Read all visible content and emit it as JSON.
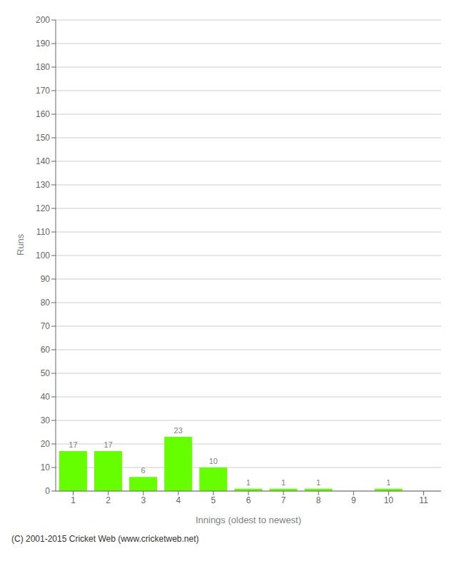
{
  "chart_data": {
    "type": "bar",
    "categories": [
      "1",
      "2",
      "3",
      "4",
      "5",
      "6",
      "7",
      "8",
      "9",
      "10",
      "11"
    ],
    "values": [
      17,
      17,
      6,
      23,
      10,
      1,
      1,
      1,
      0,
      1,
      0
    ],
    "color": "#66ff00",
    "xlabel": "Innings (oldest to newest)",
    "ylabel": "Runs",
    "ylim": [
      0,
      200
    ],
    "yticks": [
      0,
      10,
      20,
      30,
      40,
      50,
      60,
      70,
      80,
      90,
      100,
      110,
      120,
      130,
      140,
      150,
      160,
      170,
      180,
      190,
      200
    ],
    "grid": true,
    "data_labels": true,
    "annotations": [
      "(C) 2001-2015 Cricket Web (www.cricketweb.net)"
    ]
  }
}
